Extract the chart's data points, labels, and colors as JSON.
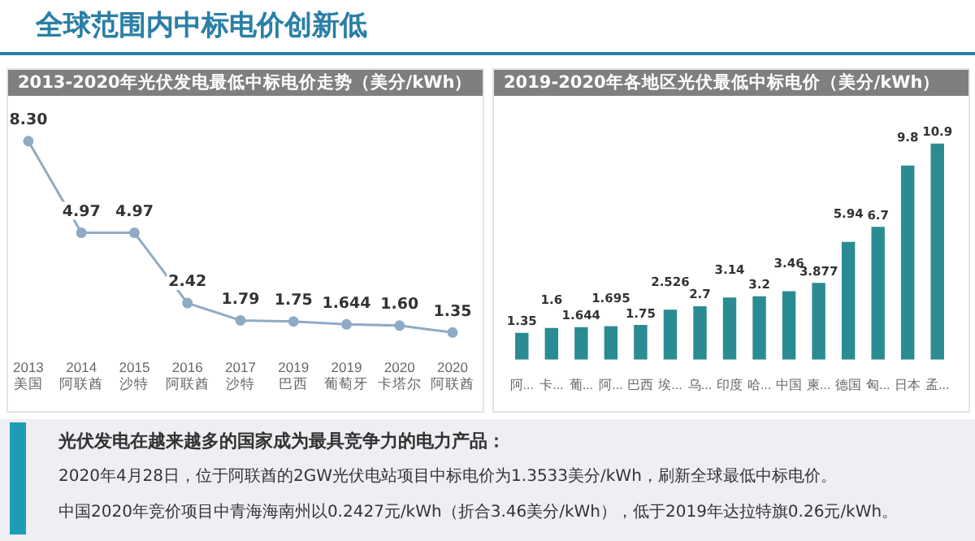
{
  "chart_data": [
    {
      "type": "line",
      "title": "2013-2020年光伏发电最低中标电价走势（美分/kWh）",
      "annotations": [
        "全球范围内中标电价创新低"
      ],
      "categories": [
        "2013\n美国",
        "2014\n阿联酋",
        "2015\n沙特",
        "2016\n阿联酋",
        "2017\n沙特",
        "2019\n巴西",
        "2019\n葡萄牙",
        "2020\n卡塔尔",
        "2020\n阿联酋"
      ],
      "series": [
        {
          "color": "#8eabc4",
          "values": [
            8.3,
            4.97,
            4.97,
            2.42,
            1.79,
            1.75,
            1.644,
            1.6,
            1.35
          ],
          "value_labels": [
            "8.30",
            "4.97",
            "4.97",
            "2.42",
            "1.79",
            "1.75",
            "1.644",
            "1.60",
            "1.35"
          ]
        }
      ],
      "marker": "circle",
      "tick_labels": "x",
      "grid": false,
      "legend": false
    },
    {
      "type": "bar",
      "title": "2019-2020年各地区光伏最低中标电价（美分/kWh）",
      "annotations": [
        "光伏发电在越来越多的国家成为最具竞争力的电力产品：",
        "2020年4月28日，位于阿联酋的2GW光伏电站项目中标电价为1.3533美分/kWh，刷新全球最低中标电价。",
        "中国2020年竞价项目中青海海南州以0.2427元/kWh（折合3.46美分/kWh），低于2019年达拉特旗0.26元/kWh。"
      ],
      "categories": [
        "阿...",
        "卡...",
        "葡...",
        "阿...",
        "巴西",
        "埃...",
        "乌...",
        "印度",
        "哈...",
        "中国",
        "柬...",
        "德国",
        "匈...",
        "日本",
        "孟..."
      ],
      "series": [
        {
          "color": "#2a8c92",
          "values": [
            1.35,
            1.6,
            1.644,
            1.695,
            1.75,
            2.526,
            2.7,
            3.14,
            3.2,
            3.46,
            3.877,
            5.94,
            6.7,
            9.8,
            10.9
          ]
        }
      ],
      "data_labels": true,
      "tick_labels": "x",
      "grid": false,
      "legend": false
    }
  ]
}
